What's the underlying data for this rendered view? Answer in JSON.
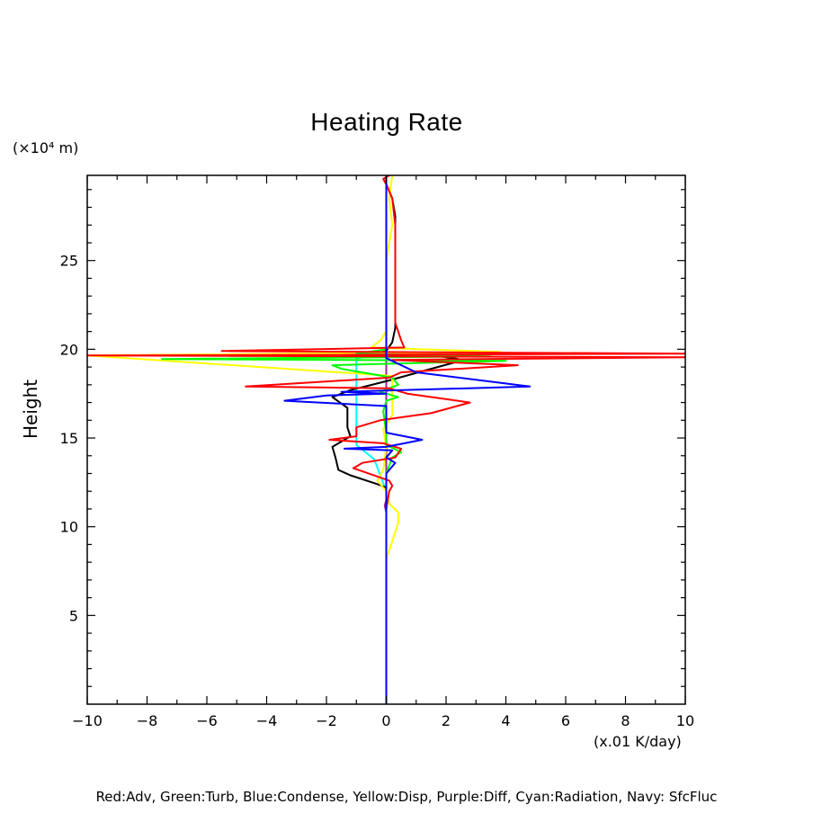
{
  "chart_data": {
    "type": "line",
    "title": "Heating Rate",
    "ylabel": "Height",
    "yunits": "(×10⁴ m)",
    "xunits": "(x.01 K/day)",
    "xlim": [
      -10,
      10
    ],
    "ylim": [
      0,
      29.8
    ],
    "xticks": [
      -10,
      -8,
      -6,
      -4,
      -2,
      0,
      2,
      4,
      6,
      8,
      10
    ],
    "xtick_labels": [
      "−10",
      "−8",
      "−6",
      "−4",
      "−2",
      "0",
      "2",
      "4",
      "6",
      "8",
      "10"
    ],
    "yticks": [
      5,
      10,
      15,
      20,
      25
    ],
    "ytick_labels": [
      "5",
      "10",
      "15",
      "20",
      "25"
    ],
    "legend_text": "Red:Adv, Green:Turb, Blue:Condense, Yellow:Disp, Purple:Diff, Cyan:Radiation, Navy: SfcFluc",
    "grid": false,
    "series": [
      {
        "name": "Navy: SfcFluc",
        "color": "#000080",
        "points": [
          [
            0,
            0
          ],
          [
            0,
            8
          ],
          [
            0,
            12
          ],
          [
            0,
            16
          ],
          [
            0,
            19.6
          ],
          [
            0,
            22
          ],
          [
            0,
            26
          ],
          [
            0,
            29.8
          ]
        ]
      },
      {
        "name": "Cyan:Radiation",
        "color": "#00ffff",
        "points": [
          [
            0,
            0
          ],
          [
            0,
            12
          ],
          [
            -0.4,
            13.8
          ],
          [
            -1,
            14.6
          ],
          [
            -1,
            17
          ],
          [
            -1,
            19.5
          ],
          [
            0,
            19.7
          ],
          [
            0,
            29.8
          ]
        ]
      },
      {
        "name": "Purple:Diff",
        "color": "#a020a0",
        "points": [
          [
            0,
            0
          ],
          [
            0,
            10.8
          ],
          [
            -0.05,
            11.2
          ],
          [
            0,
            11.5
          ],
          [
            0,
            29.8
          ]
        ]
      },
      {
        "name": "Black",
        "color": "#000000",
        "points": [
          [
            0,
            7.8
          ],
          [
            0,
            12.2
          ],
          [
            -0.3,
            12.4
          ],
          [
            -1.2,
            12.9
          ],
          [
            -1.6,
            13.2
          ],
          [
            -1.7,
            13.9
          ],
          [
            -1.8,
            14.5
          ],
          [
            -1.5,
            14.8
          ],
          [
            -1.2,
            15.1
          ],
          [
            -1.3,
            15.6
          ],
          [
            -1.3,
            16.7
          ],
          [
            -1.8,
            17.3
          ],
          [
            -1.2,
            17.7
          ],
          [
            0,
            18.2
          ],
          [
            1.5,
            18.9
          ],
          [
            2.6,
            19.4
          ],
          [
            1.8,
            19.6
          ],
          [
            -0.5,
            19.7
          ],
          [
            0,
            19.9
          ],
          [
            0.2,
            20.4
          ],
          [
            0.3,
            21.2
          ],
          [
            0.3,
            25
          ],
          [
            0.3,
            27.5
          ],
          [
            0.2,
            28.5
          ],
          [
            0,
            29.3
          ],
          [
            -0.1,
            29.6
          ]
        ]
      },
      {
        "name": "Yellow:Disp",
        "color": "#ffff00",
        "points": [
          [
            0,
            8.2
          ],
          [
            0.2,
            9.2
          ],
          [
            0.4,
            10.2
          ],
          [
            0.4,
            10.8
          ],
          [
            0.1,
            11.3
          ],
          [
            0,
            12
          ],
          [
            -0.3,
            12.6
          ],
          [
            -0.1,
            13.2
          ],
          [
            0,
            14.5
          ],
          [
            -0.1,
            15.5
          ],
          [
            0.2,
            16.3
          ],
          [
            0.2,
            17.5
          ],
          [
            0.2,
            18.5
          ],
          [
            -10,
            19.65
          ],
          [
            3.8,
            19.85
          ],
          [
            -0.5,
            20.1
          ],
          [
            -0.2,
            20.5
          ],
          [
            0,
            21
          ],
          [
            0,
            25
          ],
          [
            0.2,
            27
          ],
          [
            0.1,
            28.5
          ],
          [
            0.2,
            29.8
          ]
        ]
      },
      {
        "name": "Green:Turb",
        "color": "#00ff00",
        "points": [
          [
            0,
            11.5
          ],
          [
            0,
            13
          ],
          [
            0.2,
            13.9
          ],
          [
            0.5,
            14.2
          ],
          [
            0,
            14.6
          ],
          [
            0,
            15.3
          ],
          [
            -0.1,
            16.5
          ],
          [
            0,
            17.1
          ],
          [
            0.4,
            17.3
          ],
          [
            -0.2,
            17.6
          ],
          [
            0.4,
            18
          ],
          [
            0.2,
            18.4
          ],
          [
            -1.5,
            18.9
          ],
          [
            -1.8,
            19.1
          ],
          [
            4,
            19.35
          ],
          [
            -7.5,
            19.45
          ],
          [
            3.5,
            19.6
          ],
          [
            -1,
            19.75
          ],
          [
            0,
            20
          ],
          [
            0,
            20.3
          ]
        ]
      },
      {
        "name": "Red:Adv",
        "color": "#ff0000",
        "points": [
          [
            0,
            11
          ],
          [
            0.1,
            12
          ],
          [
            0.2,
            12.3
          ],
          [
            0.1,
            12.6
          ],
          [
            -1.1,
            13.3
          ],
          [
            -0.8,
            13.6
          ],
          [
            0.3,
            13.9
          ],
          [
            0.5,
            14.4
          ],
          [
            -0.1,
            14.7
          ],
          [
            -1.9,
            14.9
          ],
          [
            -1,
            15.1
          ],
          [
            -1,
            15.6
          ],
          [
            -0.2,
            16
          ],
          [
            1.5,
            16.4
          ],
          [
            2.8,
            17
          ],
          [
            0.7,
            17.5
          ],
          [
            0.1,
            17.8
          ],
          [
            -4.7,
            17.9
          ],
          [
            0.1,
            18.4
          ],
          [
            0.5,
            18.7
          ],
          [
            4.4,
            19.1
          ],
          [
            0.2,
            19.4
          ],
          [
            10,
            19.55
          ],
          [
            -10,
            19.65
          ],
          [
            10,
            19.75
          ],
          [
            -5.5,
            19.9
          ],
          [
            0.6,
            20.1
          ],
          [
            0.5,
            20.5
          ],
          [
            0.3,
            21.5
          ],
          [
            0.3,
            24
          ],
          [
            0.3,
            27
          ],
          [
            0.2,
            28.5
          ],
          [
            0,
            29.3
          ],
          [
            -0.1,
            29.6
          ],
          [
            0.1,
            29.8
          ]
        ]
      },
      {
        "name": "Blue:Condense",
        "color": "#0000ff",
        "points": [
          [
            0,
            0
          ],
          [
            0,
            11
          ],
          [
            0,
            13
          ],
          [
            0.3,
            13.6
          ],
          [
            0,
            13.9
          ],
          [
            0.2,
            14.3
          ],
          [
            -1.4,
            14.4
          ],
          [
            0,
            14.5
          ],
          [
            1.2,
            14.9
          ],
          [
            0,
            15.3
          ],
          [
            0,
            16.8
          ],
          [
            -3.4,
            17.1
          ],
          [
            -2,
            17.4
          ],
          [
            0,
            17.5
          ],
          [
            -1.5,
            17.6
          ],
          [
            4.8,
            17.9
          ],
          [
            1,
            18.7
          ],
          [
            0,
            19.5
          ],
          [
            0,
            19.9
          ],
          [
            0,
            29.8
          ]
        ]
      }
    ]
  }
}
